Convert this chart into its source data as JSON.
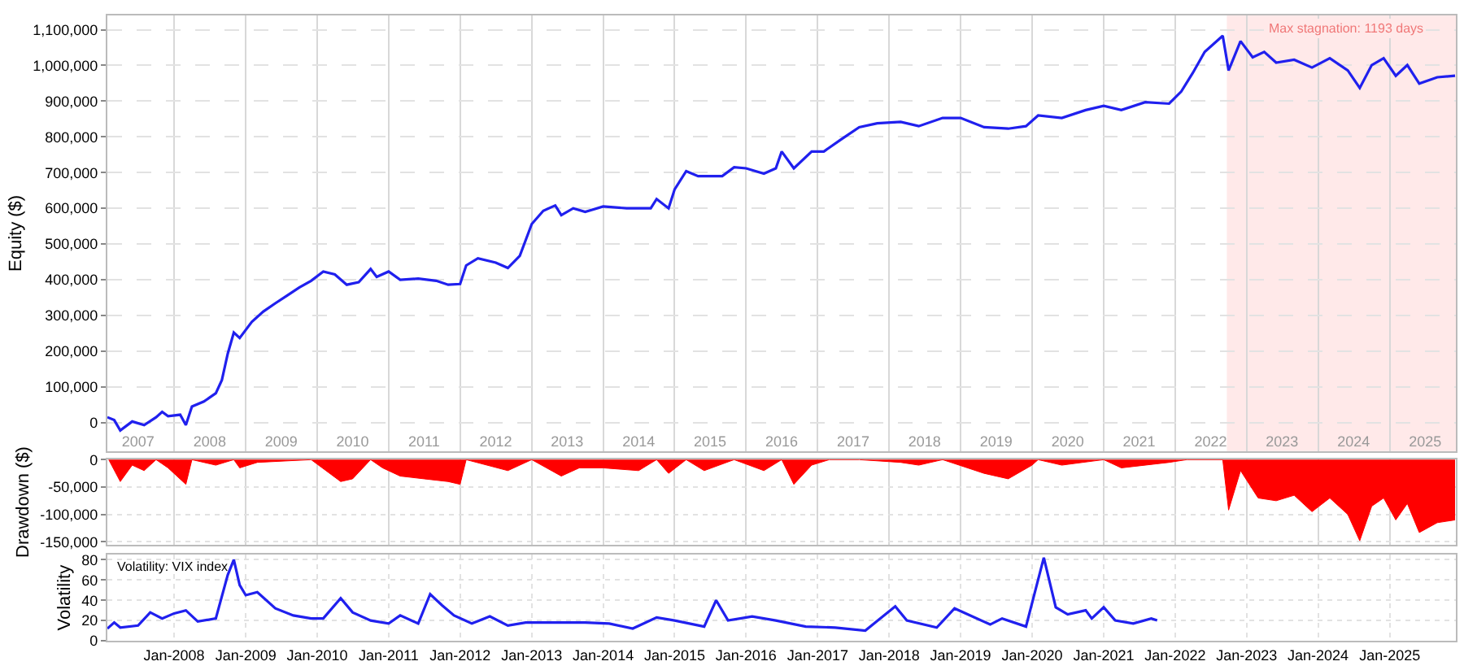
{
  "chart_data": [
    {
      "type": "line",
      "ylabel": "Equity ($)",
      "xlim": [
        "2007-01-25",
        "2025-12-05"
      ],
      "ylim": [
        -80000,
        1140000
      ],
      "grid": true,
      "tick_labels": "xy",
      "yticks": [
        0,
        {
          "value": 100000,
          "label": "100,000"
        },
        {
          "value": 200000,
          "label": "200,000"
        },
        {
          "value": 300000,
          "label": "300,000"
        },
        {
          "value": 400000,
          "label": "400,000"
        },
        {
          "value": 500000,
          "label": "500,000"
        },
        {
          "value": 600000,
          "label": "600,000"
        },
        {
          "value": 700000,
          "label": "700,000"
        },
        {
          "value": 800000,
          "label": "800,000"
        },
        {
          "value": 900000,
          "label": "900,000"
        },
        {
          "value": 1000000,
          "label": "1,000,000"
        },
        {
          "value": 1100000,
          "label": "1,100,000"
        }
      ],
      "xticks": [
        {
          "value": "2007-07",
          "label": "2007"
        },
        {
          "value": "2008-01",
          "label": null
        },
        {
          "value": "2008-07",
          "label": "2008"
        },
        {
          "value": "2009-01",
          "label": null
        },
        {
          "value": "2009-07",
          "label": "2009"
        },
        {
          "value": "2010-01",
          "label": null
        },
        {
          "value": "2010-07",
          "label": "2010"
        },
        {
          "value": "2011-01",
          "label": null
        },
        {
          "value": "2011-07",
          "label": "2011"
        },
        {
          "value": "2012-01",
          "label": null
        },
        {
          "value": "2012-07",
          "label": "2012"
        },
        {
          "value": "2013-01",
          "label": null
        },
        {
          "value": "2013-07",
          "label": "2013"
        },
        {
          "value": "2014-01",
          "label": null
        },
        {
          "value": "2014-07",
          "label": "2014"
        },
        {
          "value": "2015-01",
          "label": null
        },
        {
          "value": "2015-07",
          "label": "2015"
        },
        {
          "value": "2016-01",
          "label": null
        },
        {
          "value": "2016-07",
          "label": "2016"
        },
        {
          "value": "2017-01",
          "label": null
        },
        {
          "value": "2017-07",
          "label": "2017"
        },
        {
          "value": "2018-01",
          "label": null
        },
        {
          "value": "2018-07",
          "label": "2018"
        },
        {
          "value": "2019-01",
          "label": null
        },
        {
          "value": "2019-07",
          "label": "2019"
        },
        {
          "value": "2020-01",
          "label": null
        },
        {
          "value": "2020-07",
          "label": "2020"
        },
        {
          "value": "2021-01",
          "label": null
        },
        {
          "value": "2021-07",
          "label": "2021"
        },
        {
          "value": "2022-01",
          "label": null
        },
        {
          "value": "2022-07",
          "label": "2022"
        },
        {
          "value": "2023-01",
          "label": null
        },
        {
          "value": "2023-07",
          "label": "2023"
        },
        {
          "value": "2024-01",
          "label": null
        },
        {
          "value": "2024-07",
          "label": "2024"
        },
        {
          "value": "2025-01",
          "label": null
        },
        {
          "value": "2025-07",
          "label": "2025"
        }
      ],
      "bands": [
        {
          "axis": "x",
          "from": "2022-09-22",
          "to": "2025-12-05",
          "label": "Max stagnation: 1193 days",
          "color": "#ffe9e9"
        }
      ],
      "series": [
        {
          "color": "#2020ee",
          "x": [
            "2007-01-25",
            "2007-03",
            "2007-04",
            "2007-06",
            "2007-08",
            "2007-10",
            "2007-11",
            "2007-12",
            "2008-02",
            "2008-03",
            "2008-04",
            "2008-06",
            "2008-08",
            "2008-09",
            "2008-10",
            "2008-11",
            "2008-12",
            "2009-02",
            "2009-04",
            "2009-06",
            "2009-08",
            "2009-10",
            "2009-12",
            "2010-02",
            "2010-04",
            "2010-06",
            "2010-08",
            "2010-10",
            "2010-11",
            "2011-01",
            "2011-03",
            "2011-06",
            "2011-09",
            "2011-11",
            "2012-01",
            "2012-02",
            "2012-04",
            "2012-07",
            "2012-09",
            "2012-11",
            "2013-01",
            "2013-03",
            "2013-05",
            "2013-06",
            "2013-08",
            "2013-10",
            "2014-01",
            "2014-05",
            "2014-09",
            "2014-10",
            "2014-12",
            "2015-01",
            "2015-03",
            "2015-05",
            "2015-09",
            "2015-11",
            "2016-01",
            "2016-04",
            "2016-06",
            "2016-07",
            "2016-09",
            "2016-12",
            "2017-02",
            "2017-05",
            "2017-08",
            "2017-11",
            "2018-03",
            "2018-06",
            "2018-10",
            "2019-01",
            "2019-05",
            "2019-09",
            "2019-12",
            "2020-02",
            "2020-06",
            "2020-10",
            "2021-01",
            "2021-04",
            "2021-08",
            "2021-12",
            "2022-02",
            "2022-04",
            "2022-06",
            "2022-09",
            "2022-10",
            "2022-12",
            "2023-02",
            "2023-04",
            "2023-06",
            "2023-09",
            "2023-12",
            "2024-03",
            "2024-06",
            "2024-08",
            "2024-10",
            "2024-12",
            "2025-02",
            "2025-04",
            "2025-06",
            "2025-09",
            "2025-12"
          ],
          "values": [
            15000,
            7000,
            -22000,
            3000,
            -7000,
            15000,
            30000,
            18000,
            22000,
            -7000,
            45000,
            59000,
            82000,
            119000,
            193000,
            252000,
            237000,
            282000,
            311000,
            334000,
            356000,
            378000,
            397000,
            423000,
            415000,
            386000,
            393000,
            430000,
            408000,
            423000,
            400000,
            403000,
            397000,
            386000,
            388000,
            440000,
            460000,
            448000,
            433000,
            467000,
            556000,
            593000,
            608000,
            581000,
            600000,
            590000,
            605000,
            600000,
            600000,
            626000,
            600000,
            653000,
            704000,
            690000,
            690000,
            715000,
            712000,
            697000,
            712000,
            759000,
            712000,
            759000,
            759000,
            793000,
            827000,
            838000,
            842000,
            830000,
            853000,
            853000,
            827000,
            823000,
            830000,
            860000,
            853000,
            875000,
            887000,
            875000,
            897000,
            893000,
            927000,
            979000,
            1038000,
            1083000,
            986000,
            1068000,
            1023000,
            1038000,
            1008000,
            1016000,
            994000,
            1020000,
            986000,
            937000,
            1001000,
            1020000,
            971000,
            1001000,
            949000,
            967000,
            971000
          ]
        }
      ]
    },
    {
      "type": "area",
      "ylabel": "Drawdown ($)",
      "xlim": [
        "2007-01-25",
        "2025-12-05"
      ],
      "ylim": [
        -156000,
        1000
      ],
      "grid": true,
      "tick_labels": "y",
      "yticks": [
        0,
        {
          "value": -50000,
          "label": "-50,000"
        },
        {
          "value": -100000,
          "label": "-100,000"
        },
        {
          "value": -150000,
          "label": "-150,000"
        }
      ],
      "xticks": [
        {
          "value": "2008-01",
          "label": null
        },
        {
          "value": "2009-01",
          "label": null
        },
        {
          "value": "2010-01",
          "label": null
        },
        {
          "value": "2011-01",
          "label": null
        },
        {
          "value": "2012-01",
          "label": null
        },
        {
          "value": "2013-01",
          "label": null
        },
        {
          "value": "2014-01",
          "label": null
        },
        {
          "value": "2015-01",
          "label": null
        },
        {
          "value": "2016-01",
          "label": null
        },
        {
          "value": "2017-01",
          "label": null
        },
        {
          "value": "2018-01",
          "label": null
        },
        {
          "value": "2019-01",
          "label": null
        },
        {
          "value": "2020-01",
          "label": null
        },
        {
          "value": "2021-01",
          "label": null
        },
        {
          "value": "2022-01",
          "label": null
        },
        {
          "value": "2023-01",
          "label": null
        },
        {
          "value": "2024-01",
          "label": null
        },
        {
          "value": "2025-01",
          "label": null
        }
      ],
      "series": [
        {
          "color": "#ff0000",
          "x": [
            "2007-02",
            "2007-04",
            "2007-06",
            "2007-08",
            "2007-10",
            "2007-12",
            "2008-03",
            "2008-04",
            "2008-08",
            "2008-11",
            "2008-12",
            "2009-03",
            "2009-12",
            "2010-05",
            "2010-07",
            "2010-10",
            "2010-12",
            "2011-03",
            "2011-07",
            "2011-11",
            "2012-01",
            "2012-02",
            "2012-09",
            "2012-11",
            "2013-01",
            "2013-06",
            "2013-09",
            "2014-01",
            "2014-07",
            "2014-10",
            "2014-12",
            "2015-03",
            "2015-06",
            "2015-11",
            "2016-04",
            "2016-07",
            "2016-09",
            "2016-12",
            "2017-03",
            "2017-08",
            "2018-03",
            "2018-06",
            "2018-10",
            "2019-05",
            "2019-09",
            "2020-01",
            "2020-02",
            "2020-06",
            "2021-01",
            "2021-04",
            "2021-12",
            "2022-03",
            "2022-09",
            "2022-10",
            "2022-12",
            "2023-03",
            "2023-06",
            "2023-09",
            "2023-12",
            "2024-03",
            "2024-06",
            "2024-08",
            "2024-10",
            "2024-12",
            "2025-02",
            "2025-04",
            "2025-06",
            "2025-09",
            "2025-12"
          ],
          "values": [
            0,
            -40000,
            -10000,
            -20000,
            0,
            -15000,
            -45000,
            0,
            -10000,
            0,
            -15000,
            -5000,
            0,
            -40000,
            -35000,
            0,
            -15000,
            -30000,
            -35000,
            -40000,
            -45000,
            0,
            -20000,
            -10000,
            0,
            -30000,
            -15000,
            -15000,
            -20000,
            0,
            -25000,
            0,
            -20000,
            0,
            -20000,
            0,
            -45000,
            -10000,
            0,
            0,
            -5000,
            -10000,
            0,
            -25000,
            -35000,
            -10000,
            0,
            -10000,
            0,
            -15000,
            -5000,
            0,
            0,
            -92000,
            -20000,
            -70000,
            -75000,
            -65000,
            -95000,
            -70000,
            -100000,
            -148000,
            -85000,
            -70000,
            -110000,
            -80000,
            -133000,
            -115000,
            -110000
          ]
        }
      ]
    },
    {
      "type": "line",
      "ylabel": "Volatility",
      "xlim": [
        "2007-01-25",
        "2025-12-05"
      ],
      "ylim": [
        0,
        85
      ],
      "grid": true,
      "tick_labels": "xy",
      "yticks": [
        0,
        20,
        40,
        60,
        80
      ],
      "annotations": [
        "Volatility: VIX index"
      ],
      "xticks": [
        {
          "value": "2008-01",
          "label": "Jan-2008"
        },
        {
          "value": "2009-01",
          "label": "Jan-2009"
        },
        {
          "value": "2010-01",
          "label": "Jan-2010"
        },
        {
          "value": "2011-01",
          "label": "Jan-2011"
        },
        {
          "value": "2012-01",
          "label": "Jan-2012"
        },
        {
          "value": "2013-01",
          "label": "Jan-2013"
        },
        {
          "value": "2014-01",
          "label": "Jan-2014"
        },
        {
          "value": "2015-01",
          "label": "Jan-2015"
        },
        {
          "value": "2016-01",
          "label": "Jan-2016"
        },
        {
          "value": "2017-01",
          "label": "Jan-2017"
        },
        {
          "value": "2018-01",
          "label": "Jan-2018"
        },
        {
          "value": "2019-01",
          "label": "Jan-2019"
        },
        {
          "value": "2020-01",
          "label": "Jan-2020"
        },
        {
          "value": "2021-01",
          "label": "Jan-2021"
        },
        {
          "value": "2022-01",
          "label": "Jan-2022"
        },
        {
          "value": "2023-01",
          "label": "Jan-2023"
        },
        {
          "value": "2024-01",
          "label": "Jan-2024"
        },
        {
          "value": "2025-01",
          "label": "Jan-2025"
        }
      ],
      "series": [
        {
          "color": "#2020ee",
          "x": [
            "2007-01-25",
            "2007-03",
            "2007-04",
            "2007-07",
            "2007-09",
            "2007-11",
            "2008-01",
            "2008-03",
            "2008-05",
            "2008-08",
            "2008-10",
            "2008-11",
            "2008-12",
            "2009-01",
            "2009-03",
            "2009-06",
            "2009-09",
            "2009-12",
            "2010-02",
            "2010-05",
            "2010-07",
            "2010-10",
            "2011-01",
            "2011-03",
            "2011-06",
            "2011-08",
            "2011-10",
            "2011-12",
            "2012-03",
            "2012-06",
            "2012-09",
            "2012-12",
            "2013-06",
            "2013-10",
            "2014-02",
            "2014-06",
            "2014-10",
            "2015-01",
            "2015-06",
            "2015-08",
            "2015-10",
            "2016-02",
            "2016-06",
            "2016-11",
            "2017-04",
            "2017-09",
            "2018-02",
            "2018-04",
            "2018-09",
            "2018-12",
            "2019-06",
            "2019-08",
            "2019-12",
            "2020-03",
            "2020-05",
            "2020-07",
            "2020-10",
            "2020-11",
            "2021-01",
            "2021-03",
            "2021-06",
            "2021-09",
            "2021-10"
          ],
          "values": [
            12,
            18,
            13,
            15,
            28,
            22,
            27,
            30,
            19,
            22,
            65,
            80,
            55,
            45,
            48,
            32,
            25,
            22,
            22,
            42,
            28,
            20,
            17,
            25,
            17,
            46,
            35,
            25,
            17,
            24,
            15,
            18,
            18,
            18,
            17,
            12,
            23,
            20,
            14,
            40,
            20,
            24,
            20,
            14,
            13,
            10,
            34,
            20,
            13,
            32,
            16,
            22,
            14,
            82,
            33,
            26,
            30,
            22,
            33,
            20,
            17,
            22,
            20
          ]
        }
      ]
    }
  ]
}
